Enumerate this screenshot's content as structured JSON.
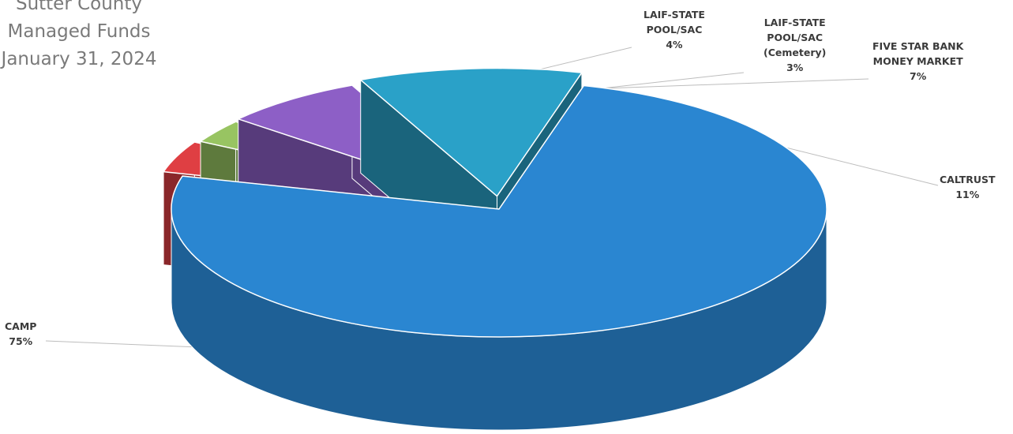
{
  "title": {
    "line1": "Sutter County",
    "line2": "Managed Funds",
    "line3": "January 31, 2024"
  },
  "chart_data": {
    "type": "pie",
    "title": "Sutter County Managed Funds January 31, 2024",
    "three_d": true,
    "exploded": true,
    "slices": [
      {
        "name_lines": [
          "CAMP"
        ],
        "pct_label": "75%",
        "value": 75,
        "color": "#2a86d1"
      },
      {
        "name_lines": [
          "LAIF-STATE",
          "POOL/SAC"
        ],
        "pct_label": "4%",
        "value": 4,
        "color": "#df3f43"
      },
      {
        "name_lines": [
          "LAIF-STATE",
          "POOL/SAC",
          "(Cemetery)"
        ],
        "pct_label": "3%",
        "value": 3,
        "color": "#98c462"
      },
      {
        "name_lines": [
          "FIVE STAR BANK",
          "MONEY MARKET"
        ],
        "pct_label": "7%",
        "value": 7,
        "color": "#8d5fc6"
      },
      {
        "name_lines": [
          "CALTRUST"
        ],
        "pct_label": "11%",
        "value": 11,
        "color": "#2aa1c8"
      }
    ]
  }
}
